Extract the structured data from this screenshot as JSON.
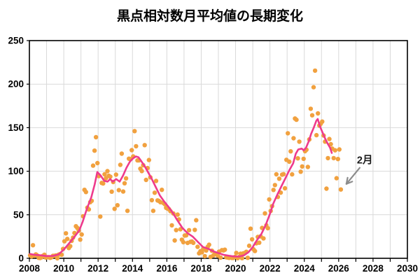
{
  "title": "黒点相対数月平均値の長期変化",
  "chart_data": {
    "type": "scatter",
    "title": "黒点相対数月平均値の長期変化",
    "xlabel": "",
    "ylabel": "",
    "xlim": [
      2008,
      2030
    ],
    "ylim": [
      0,
      250
    ],
    "x_tick_years": [
      2008,
      2010,
      2012,
      2014,
      2016,
      2018,
      2020,
      2022,
      2024,
      2026,
      2028,
      2030
    ],
    "x_tick_labels": [
      "2008",
      "2010",
      "2012",
      "2014",
      "2016",
      "2018",
      "2020",
      "2022",
      "2024",
      "2026",
      "2028",
      "2030"
    ],
    "x_minor_tick_step": 1,
    "y_tick_values": [
      0,
      50,
      100,
      150,
      200,
      250
    ],
    "y_tick_labels": [
      "0",
      "50",
      "100",
      "150",
      "200",
      "250"
    ],
    "grid": true,
    "legend": "none",
    "series": [
      {
        "name": "monthly-mean-sunspot-number",
        "type": "scatter",
        "color": "#F1A13F",
        "marker_radius": 3.2,
        "start_year": 2008,
        "start_month": 1,
        "values": [
          3.4,
          2.1,
          15.0,
          2.9,
          4.5,
          3.2,
          0.6,
          0.3,
          1.1,
          2.9,
          4.1,
          0.8,
          1.3,
          1.2,
          0.6,
          1.2,
          2.9,
          2.9,
          3.2,
          0.0,
          4.3,
          4.8,
          4.1,
          10.8,
          19.5,
          28.7,
          22.3,
          11.8,
          13.9,
          20.0,
          23.8,
          29.0,
          36.8,
          34.8,
          31.7,
          21.5,
          27.3,
          48.3,
          78.6,
          76.1,
          58.2,
          56.1,
          64.5,
          66.0,
          106.4,
          123.6,
          139.1,
          109.3,
          94.4,
          47.9,
          86.6,
          85.9,
          96.5,
          92.0,
          100.1,
          94.8,
          93.7,
          76.5,
          87.6,
          56.8,
          96.1,
          60.9,
          78.3,
          107.3,
          120.2,
          76.7,
          86.2,
          91.8,
          54.5,
          114.4,
          113.9,
          124.2,
          117.0,
          146.1,
          128.7,
          112.5,
          112.5,
          102.9,
          100.2,
          106.9,
          130.0,
          90.0,
          103.6,
          112.9,
          93.0,
          66.7,
          54.5,
          75.3,
          88.8,
          66.5,
          65.8,
          64.4,
          78.6,
          63.6,
          62.2,
          58.0,
          57.0,
          56.4,
          54.1,
          37.9,
          51.5,
          20.5,
          32.4,
          50.2,
          44.6,
          33.4,
          21.4,
          18.5,
          26.1,
          26.4,
          17.7,
          32.3,
          18.9,
          19.2,
          17.8,
          32.6,
          43.7,
          13.2,
          5.7,
          8.2,
          6.8,
          10.7,
          2.5,
          8.9,
          13.1,
          15.6,
          1.6,
          8.7,
          3.3,
          4.9,
          4.9,
          3.1,
          7.7,
          0.8,
          9.4,
          9.1,
          9.9,
          1.2,
          0.9,
          0.5,
          1.1,
          0.4,
          0.5,
          1.5,
          6.2,
          0.2,
          1.5,
          5.2,
          0.2,
          5.8,
          6.1,
          7.5,
          0.6,
          14.4,
          34.0,
          21.8,
          10.4,
          8.4,
          17.2,
          24.5,
          17.9,
          25.2,
          34.9,
          22.8,
          51.6,
          37.9,
          34.6,
          67.6,
          54.4,
          59.9,
          78.5,
          84.1,
          96.5,
          70.5,
          91.4,
          75.4,
          96.1,
          96.6,
          80.4,
          113.1,
          143.6,
          110.9,
          122.8,
          96.4,
          137.9,
          160.5,
          159.1,
          114.8,
          133.9,
          99.4,
          105.5,
          114.2,
          123.0,
          124.7,
          104.9,
          136.5,
          171.7,
          164.2,
          196.5,
          215.5,
          141.4,
          166.4,
          152.5,
          154.5,
          157.0,
          141.0,
          134.0,
          80.0,
          115.0,
          137.0,
          131.0,
          126.0,
          115.0,
          124.0,
          92.0,
          114.0,
          125.0,
          79.0
        ]
      },
      {
        "name": "smoothed-mean-curve",
        "type": "line",
        "color": "#EE3A8C",
        "stroke_width": 2.6,
        "points": [
          [
            2008.04,
            5
          ],
          [
            2008.3,
            4
          ],
          [
            2008.6,
            3.5
          ],
          [
            2009.0,
            2.6
          ],
          [
            2009.4,
            2.8
          ],
          [
            2009.7,
            4.5
          ],
          [
            2010.0,
            10
          ],
          [
            2010.3,
            17
          ],
          [
            2010.6,
            24
          ],
          [
            2010.9,
            32
          ],
          [
            2011.1,
            42
          ],
          [
            2011.35,
            57
          ],
          [
            2011.6,
            70
          ],
          [
            2011.8,
            85
          ],
          [
            2011.95,
            99
          ],
          [
            2012.15,
            95
          ],
          [
            2012.35,
            89
          ],
          [
            2012.55,
            88
          ],
          [
            2012.7,
            91
          ],
          [
            2012.85,
            88
          ],
          [
            2013.05,
            91
          ],
          [
            2013.25,
            88
          ],
          [
            2013.45,
            95
          ],
          [
            2013.65,
            104
          ],
          [
            2013.85,
            111
          ],
          [
            2014.05,
            115
          ],
          [
            2014.2,
            117
          ],
          [
            2014.35,
            116
          ],
          [
            2014.5,
            112
          ],
          [
            2014.7,
            106
          ],
          [
            2014.9,
            99
          ],
          [
            2015.1,
            92
          ],
          [
            2015.35,
            82
          ],
          [
            2015.6,
            72
          ],
          [
            2015.85,
            65
          ],
          [
            2016.1,
            59
          ],
          [
            2016.35,
            52
          ],
          [
            2016.6,
            44
          ],
          [
            2016.9,
            35
          ],
          [
            2017.2,
            29
          ],
          [
            2017.5,
            25
          ],
          [
            2017.8,
            19
          ],
          [
            2018.1,
            13
          ],
          [
            2018.4,
            11
          ],
          [
            2018.7,
            8
          ],
          [
            2019.0,
            6
          ],
          [
            2019.3,
            4
          ],
          [
            2019.6,
            3
          ],
          [
            2019.9,
            2.2
          ],
          [
            2020.2,
            2
          ],
          [
            2020.5,
            3.5
          ],
          [
            2020.75,
            7
          ],
          [
            2021.0,
            13
          ],
          [
            2021.25,
            21
          ],
          [
            2021.5,
            28
          ],
          [
            2021.75,
            38
          ],
          [
            2022.0,
            51
          ],
          [
            2022.2,
            63
          ],
          [
            2022.45,
            74
          ],
          [
            2022.7,
            84
          ],
          [
            2022.95,
            94
          ],
          [
            2023.15,
            102
          ],
          [
            2023.35,
            109
          ],
          [
            2023.5,
            120
          ],
          [
            2023.65,
            125
          ],
          [
            2023.85,
            126
          ],
          [
            2023.97,
            124
          ],
          [
            2024.1,
            127
          ],
          [
            2024.25,
            134
          ],
          [
            2024.4,
            143
          ],
          [
            2024.55,
            150
          ],
          [
            2024.7,
            158
          ],
          [
            2024.78,
            160
          ],
          [
            2024.9,
            152
          ],
          [
            2025.05,
            145
          ],
          [
            2025.2,
            138
          ],
          [
            2025.35,
            132
          ],
          [
            2025.5,
            127
          ],
          [
            2025.6,
            121
          ]
        ]
      }
    ],
    "annotation": {
      "label": "2月",
      "target_year": 2026.125,
      "target_value": 79,
      "arrow_color": "#8C8C8C"
    }
  },
  "colors": {
    "background": "#FFFFFF",
    "axis": "#000000",
    "grid": "#D9D9D9",
    "scatter": "#F1A13F",
    "line": "#EE3A8C",
    "arrow": "#8C8C8C",
    "text": "#000000"
  }
}
